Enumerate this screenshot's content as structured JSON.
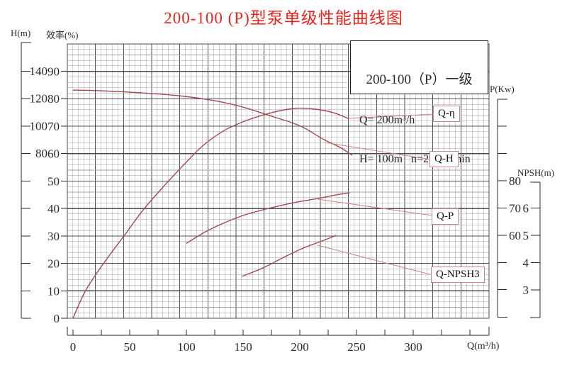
{
  "title": "200-100 (P)型泵单级性能曲线图",
  "info_box": {
    "line1": "200-100（P）一级",
    "line2": "Q= 200m³/h",
    "line3": "H= 100m   n=2950r/min"
  },
  "colors": {
    "title_red": "#e8241c",
    "curve": "#9e4a52",
    "leader": "#d2838b",
    "grid_minor": "#a3a3a3",
    "grid_major": "#4d4d4d",
    "axis": "#2a2a2a"
  },
  "axes": {
    "head": {
      "title": "H(m)",
      "labeled_ticks": [
        140,
        120,
        100,
        80
      ],
      "unlabeled_tick_count": 5
    },
    "efficiency": {
      "title": "效率(%)",
      "labeled_ticks": [
        90,
        80,
        70,
        60,
        50,
        40,
        30,
        20,
        10,
        0
      ]
    },
    "power": {
      "title": "P(Kw)",
      "labeled_ticks": [
        80,
        70,
        60
      ],
      "unlabeled_ticks": [
        100,
        90,
        50,
        40
      ]
    },
    "npsh": {
      "title": "NPSH(m)",
      "labeled_ticks": [
        6,
        5,
        4,
        3
      ]
    },
    "flow": {
      "title": "Q(m³/h)",
      "labeled_ticks": [
        0,
        50,
        100,
        150,
        200,
        250,
        300
      ],
      "minor_tick_step": 25,
      "max": 350
    }
  },
  "chart_data": {
    "type": "line",
    "title": "200-100 (P)型泵单级性能曲线图",
    "xlabel": "Q(m³/h)",
    "x_range": [
      0,
      350
    ],
    "grid": true,
    "legend_position": "top-right",
    "y_axes": {
      "efficiency": {
        "label": "效率(%)",
        "range_shown": [
          0,
          90
        ]
      },
      "head": {
        "label": "H(m)",
        "range_shown": [
          80,
          140
        ]
      },
      "power": {
        "label": "P(Kw)",
        "range_shown": [
          60,
          80
        ]
      },
      "npsh": {
        "label": "NPSH(m)",
        "range_shown": [
          3,
          6
        ]
      }
    },
    "series": [
      {
        "name": "Q-η",
        "y_axis": "efficiency",
        "points": [
          [
            0,
            0
          ],
          [
            11,
            10
          ],
          [
            27,
            20
          ],
          [
            45,
            30
          ],
          [
            62,
            39.5
          ],
          [
            81,
            48.5
          ],
          [
            98,
            56
          ],
          [
            115,
            63
          ],
          [
            134,
            68.5
          ],
          [
            153,
            72
          ],
          [
            172,
            74.5
          ],
          [
            188,
            76
          ],
          [
            201,
            76.5
          ],
          [
            216,
            76
          ],
          [
            230,
            74.8
          ],
          [
            243,
            72.7
          ]
        ]
      },
      {
        "name": "Q-H",
        "y_axis": "head",
        "points": [
          [
            0,
            126
          ],
          [
            25,
            125.5
          ],
          [
            60,
            124
          ],
          [
            92,
            122
          ],
          [
            123,
            118.5
          ],
          [
            148,
            114
          ],
          [
            173,
            107.5
          ],
          [
            200,
            100
          ],
          [
            220,
            90.5
          ],
          [
            236,
            84
          ],
          [
            246,
            78.5
          ]
        ]
      },
      {
        "name": "Q-P",
        "y_axis": "power",
        "points": [
          [
            100,
            57
          ],
          [
            117,
            61.3
          ],
          [
            136,
            65
          ],
          [
            154,
            67.8
          ],
          [
            176,
            70.2
          ],
          [
            198,
            72.2
          ],
          [
            220,
            73.8
          ],
          [
            232,
            74.8
          ],
          [
            244,
            75.6
          ]
        ]
      },
      {
        "name": "Q-NPSH3",
        "y_axis": "npsh",
        "points": [
          [
            149,
            3.5
          ],
          [
            167,
            3.8
          ],
          [
            186,
            4.2
          ],
          [
            204,
            4.55
          ],
          [
            220,
            4.8
          ],
          [
            232,
            5.0
          ]
        ]
      }
    ]
  }
}
